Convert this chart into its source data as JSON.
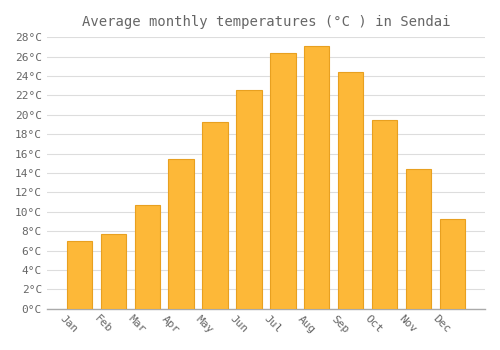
{
  "title": "Average monthly temperatures (°C ) in Sendai",
  "months": [
    "Jan",
    "Feb",
    "Mar",
    "Apr",
    "May",
    "Jun",
    "Jul",
    "Aug",
    "Sep",
    "Oct",
    "Nov",
    "Dec"
  ],
  "temperatures": [
    7.0,
    7.7,
    10.7,
    15.4,
    19.3,
    22.5,
    26.4,
    27.1,
    24.4,
    19.5,
    14.4,
    9.2
  ],
  "bar_color": "#FDB838",
  "bar_edge_color": "#E8A020",
  "background_color": "#FFFFFF",
  "plot_bg_color": "#FFFFFF",
  "grid_color": "#DDDDDD",
  "text_color": "#666666",
  "ylim": [
    0,
    28
  ],
  "ytick_step": 2,
  "title_fontsize": 10,
  "tick_fontsize": 8,
  "font_family": "monospace",
  "bar_width": 0.75,
  "xlabel_rotation": -45
}
